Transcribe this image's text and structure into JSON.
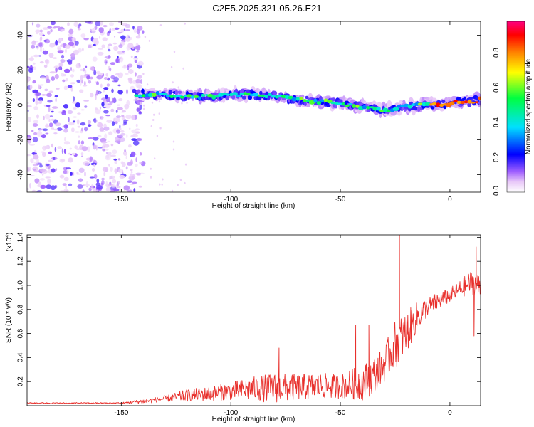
{
  "title": "C2E5.2025.321.05.26.E21",
  "chart_data": [
    {
      "type": "heatmap",
      "xlabel": "Height of straight line (km)",
      "ylabel": "Frequency (Hz)",
      "xlim": [
        -193,
        14
      ],
      "ylim": [
        -50,
        48
      ],
      "xticks": [
        -150,
        -100,
        -50,
        0
      ],
      "yticks": [
        -40,
        -20,
        0,
        20,
        40
      ],
      "colorbar": {
        "label": "Normalized spectral amplitude",
        "range": [
          0,
          1
        ],
        "ticks": [
          "0.0",
          "0.2",
          "0.4",
          "0.6",
          "0.8"
        ],
        "colormap": [
          "#ffffff",
          "#e8c8f8",
          "#8000ff",
          "#0000ff",
          "#00e0ff",
          "#00ff40",
          "#ffff00",
          "#ff8000",
          "#ff0000",
          "#ff0080"
        ]
      },
      "noise_region_x": [
        -193,
        -140
      ],
      "signal_track": {
        "x": [
          -143,
          -130,
          -120,
          -110,
          -100,
          -90,
          -80,
          -70,
          -60,
          -50,
          -40,
          -30,
          -20,
          -10,
          0,
          10,
          14
        ],
        "y": [
          6,
          6,
          5,
          5,
          6,
          6,
          5,
          3,
          2,
          1,
          -1,
          -3,
          -1,
          0,
          1,
          2,
          3
        ],
        "peak_amplitude": 1.0
      }
    },
    {
      "type": "line",
      "xlabel": "Height of straight line (km)",
      "ylabel": "SNR (10 * v/v)",
      "y_multiplier": "(x10",
      "y_multiplier_exp": "4",
      "xlim": [
        -193,
        14
      ],
      "ylim": [
        0,
        1.42
      ],
      "xticks": [
        -150,
        -100,
        -50,
        0
      ],
      "yticks": [
        "0.2",
        "0.4",
        "0.6",
        "0.8",
        "1.0",
        "1.2",
        "1.4"
      ],
      "color": "#e8302c",
      "envelope": {
        "x": [
          -193,
          -150,
          -140,
          -130,
          -120,
          -110,
          -100,
          -90,
          -80,
          -70,
          -60,
          -50,
          -40,
          -35,
          -30,
          -25,
          -20,
          -15,
          -10,
          -5,
          0,
          5,
          10,
          14
        ],
        "base": [
          0.02,
          0.02,
          0.03,
          0.05,
          0.07,
          0.08,
          0.1,
          0.11,
          0.11,
          0.12,
          0.13,
          0.13,
          0.15,
          0.2,
          0.3,
          0.45,
          0.55,
          0.7,
          0.8,
          0.85,
          0.9,
          0.95,
          1.0,
          0.95
        ],
        "amp": [
          0.01,
          0.01,
          0.04,
          0.05,
          0.1,
          0.12,
          0.15,
          0.2,
          0.25,
          0.22,
          0.22,
          0.2,
          0.3,
          0.3,
          0.3,
          0.4,
          0.35,
          0.25,
          0.15,
          0.15,
          0.12,
          0.15,
          0.2,
          0.2
        ]
      },
      "peaks": [
        {
          "x": -78,
          "y": 0.48
        },
        {
          "x": -43,
          "y": 0.67
        },
        {
          "x": -37,
          "y": 0.67
        },
        {
          "x": -23,
          "y": 1.42
        },
        {
          "x": 12,
          "y": 1.32
        },
        {
          "x": 11,
          "y": 0.58
        }
      ]
    }
  ]
}
